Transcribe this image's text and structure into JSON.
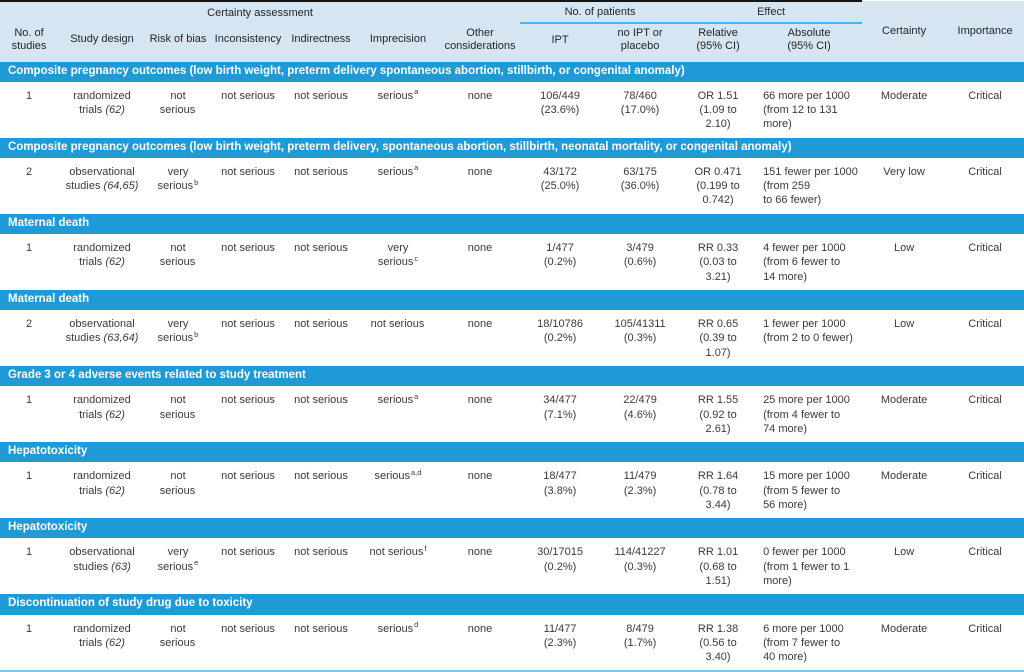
{
  "colors": {
    "bar_blue": "#1e9bd6",
    "header_bg": "#d5e5f2",
    "underline_blue": "#4fb3e6",
    "bottom_line_blue": "#85c4e8"
  },
  "header": {
    "certainty_assessment": "Certainty assessment",
    "no_of_patients": "No. of patients",
    "effect": "Effect",
    "certainty": "Certainty",
    "importance": "Importance",
    "cols": [
      "No. of\nstudies",
      "Study design",
      "Risk of bias",
      "Inconsistency",
      "Indirectness",
      "Imprecision",
      "Other\nconsiderations",
      "IPT",
      "no IPT or\nplacebo",
      "Relative\n(95% CI)",
      "Absolute\n(95% CI)"
    ]
  },
  "groups": [
    {
      "title": "Composite pregnancy outcomes (low birth weight, preterm delivery spontaneous abortion, stillbirth, or congenital anomaly)",
      "row": {
        "n_studies": "1",
        "design": "randomized trials",
        "design_ref": "(62)",
        "risk_of_bias": "not\nserious",
        "risk_of_bias_note": "",
        "inconsistency": "not serious",
        "indirectness": "not serious",
        "imprecision": "serious",
        "imprecision_note": "a",
        "other_considerations": "none",
        "ipt": "106/449\n(23.6%)",
        "no_ipt_or_placebo": "78/460\n(17.0%)",
        "relative": "OR 1.51\n(1.09 to\n2.10)",
        "absolute": "66 more per 1000\n(from 12 to 131\nmore)",
        "certainty": "Moderate",
        "importance": "Critical"
      }
    },
    {
      "title": "Composite pregnancy outcomes (low birth weight, preterm delivery, spontaneous abortion, stillbirth, neonatal mortality, or congenital anomaly)",
      "row": {
        "n_studies": "2",
        "design": "observational studies",
        "design_ref": "(64,65)",
        "risk_of_bias": "very\nserious",
        "risk_of_bias_note": "b",
        "inconsistency": "not serious",
        "indirectness": "not serious",
        "imprecision": "serious",
        "imprecision_note": "a",
        "other_considerations": "none",
        "ipt": "43/172\n(25.0%)",
        "no_ipt_or_placebo": "63/175\n(36.0%)",
        "relative": "OR 0.471\n(0.199 to\n0.742)",
        "absolute": "151 fewer per 1000\n(from 259\nto 66 fewer)",
        "certainty": "Very low",
        "importance": "Critical"
      }
    },
    {
      "title": "Maternal death",
      "row": {
        "n_studies": "1",
        "design": "randomized trials",
        "design_ref": "(62)",
        "risk_of_bias": "not\nserious",
        "risk_of_bias_note": "",
        "inconsistency": "not serious",
        "indirectness": "not serious",
        "imprecision": "very\nserious",
        "imprecision_note": "c",
        "other_considerations": "none",
        "ipt": "1/477\n(0.2%)",
        "no_ipt_or_placebo": "3/479\n(0.6%)",
        "relative": "RR 0.33\n(0.03 to\n3.21)",
        "absolute": "4 fewer per 1000\n(from 6 fewer to\n14 more)",
        "certainty": "Low",
        "importance": "Critical"
      }
    },
    {
      "title": "Maternal death",
      "row": {
        "n_studies": "2",
        "design": "observational studies",
        "design_ref": "(63,64)",
        "risk_of_bias": "very\nserious",
        "risk_of_bias_note": "b",
        "inconsistency": "not serious",
        "indirectness": "not serious",
        "imprecision": "not serious",
        "imprecision_note": "",
        "other_considerations": "none",
        "ipt": "18/10786\n(0.2%)",
        "no_ipt_or_placebo": "105/41311\n(0.3%)",
        "relative": "RR 0.65\n(0.39 to\n1.07)",
        "absolute": "1 fewer per 1000\n(from 2 to 0 fewer)",
        "certainty": "Low",
        "importance": "Critical"
      }
    },
    {
      "title": "Grade 3 or 4 adverse events related to study treatment",
      "row": {
        "n_studies": "1",
        "design": "randomized trials",
        "design_ref": "(62)",
        "risk_of_bias": "not\nserious",
        "risk_of_bias_note": "",
        "inconsistency": "not serious",
        "indirectness": "not serious",
        "imprecision": "serious",
        "imprecision_note": "a",
        "other_considerations": "none",
        "ipt": "34/477\n(7.1%)",
        "no_ipt_or_placebo": "22/479\n(4.6%)",
        "relative": "RR 1.55\n(0.92 to\n2.61)",
        "absolute": "25 more per 1000\n(from 4 fewer to\n74 more)",
        "certainty": "Moderate",
        "importance": "Critical"
      }
    },
    {
      "title": "Hepatotoxicity",
      "row": {
        "n_studies": "1",
        "design": "randomized trials",
        "design_ref": "(62)",
        "risk_of_bias": "not\nserious",
        "risk_of_bias_note": "",
        "inconsistency": "not serious",
        "indirectness": "not serious",
        "imprecision": "serious",
        "imprecision_note": "a,d",
        "other_considerations": "none",
        "ipt": "18/477\n(3.8%)",
        "no_ipt_or_placebo": "11/479\n(2.3%)",
        "relative": "RR 1.64\n(0.78 to\n3.44)",
        "absolute": "15 more per 1000\n(from 5 fewer to\n56 more)",
        "certainty": "Moderate",
        "importance": "Critical"
      }
    },
    {
      "title": "Hepatotoxicity",
      "row": {
        "n_studies": "1",
        "design": "observational studies",
        "design_ref": "(63)",
        "risk_of_bias": "very\nserious",
        "risk_of_bias_note": "e",
        "inconsistency": "not serious",
        "indirectness": "not serious",
        "imprecision": "not serious",
        "imprecision_note": "f",
        "other_considerations": "none",
        "ipt": "30/17015\n(0.2%)",
        "no_ipt_or_placebo": "114/41227\n(0.3%)",
        "relative": "RR 1.01\n(0.68 to\n1.51)",
        "absolute": "0 fewer per 1000\n(from 1 fewer to 1\nmore)",
        "certainty": "Low",
        "importance": "Critical"
      }
    },
    {
      "title": "Discontinuation of study drug due to toxicity",
      "row": {
        "n_studies": "1",
        "design": "randomized trials",
        "design_ref": "(62)",
        "risk_of_bias": "not\nserious",
        "risk_of_bias_note": "",
        "inconsistency": "not serious",
        "indirectness": "not serious",
        "imprecision": "serious",
        "imprecision_note": "d",
        "other_considerations": "none",
        "ipt": "11/477\n(2.3%)",
        "no_ipt_or_placebo": "8/479\n(1.7%)",
        "relative": "RR 1.38\n(0.56 to\n3.40)",
        "absolute": "6 more per 1000\n(from 7 fewer to\n40 more)",
        "certainty": "Moderate",
        "importance": "Critical"
      }
    }
  ]
}
